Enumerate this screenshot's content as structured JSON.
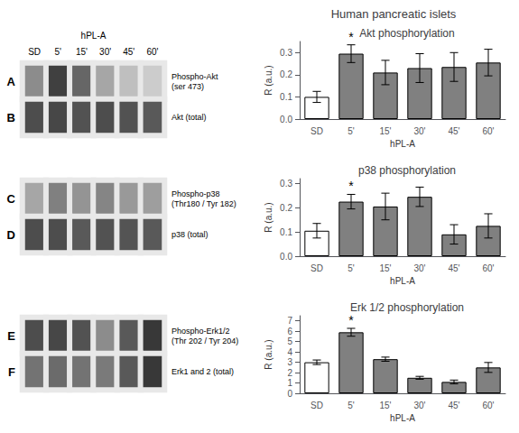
{
  "title": "Human pancreatic islets",
  "chart_data": [
    {
      "type": "bar",
      "title": "Akt phosphorylation",
      "categories": [
        "SD",
        "5'",
        "15'",
        "30'",
        "45'",
        "60'"
      ],
      "values": [
        0.1,
        0.295,
        0.21,
        0.23,
        0.235,
        0.255
      ],
      "errors": [
        0.025,
        0.04,
        0.055,
        0.065,
        0.065,
        0.06
      ],
      "colors": [
        "#ffffff",
        "#808080",
        "#808080",
        "#808080",
        "#808080",
        "#808080"
      ],
      "ylim": [
        0,
        0.35
      ],
      "yticks": [
        {
          "value": 0.0,
          "label": "0.0"
        },
        0.1,
        0.2,
        0.3
      ],
      "ylabel": "R (a.u.)",
      "xlabel": "hPL-A",
      "grid": false,
      "annotations": [
        {
          "text": "*",
          "x": "5'"
        }
      ]
    },
    {
      "type": "bar",
      "title": "p38 phosphorylation",
      "categories": [
        "SD",
        "5'",
        "15'",
        "30'",
        "45'",
        "60'"
      ],
      "values": [
        0.105,
        0.225,
        0.205,
        0.245,
        0.09,
        0.125
      ],
      "errors": [
        0.03,
        0.03,
        0.055,
        0.04,
        0.04,
        0.05
      ],
      "colors": [
        "#ffffff",
        "#808080",
        "#808080",
        "#808080",
        "#808080",
        "#808080"
      ],
      "ylim": [
        0,
        0.32
      ],
      "yticks": [
        {
          "value": 0.0,
          "label": "0.0"
        },
        0.1,
        0.2,
        0.3
      ],
      "ylabel": "R (a.u.)",
      "xlabel": "hPL-A",
      "grid": false,
      "annotations": [
        {
          "text": "*",
          "x": "5'"
        }
      ]
    },
    {
      "type": "bar",
      "title": "Erk 1/2 phosphorylation",
      "categories": [
        "SD",
        "5'",
        "15'",
        "30'",
        "45'",
        "60'"
      ],
      "values": [
        3.0,
        5.9,
        3.3,
        1.5,
        1.1,
        2.5
      ],
      "errors": [
        0.22,
        0.38,
        0.2,
        0.14,
        0.18,
        0.48
      ],
      "colors": [
        "#ffffff",
        "#808080",
        "#808080",
        "#808080",
        "#808080",
        "#808080"
      ],
      "ylim": [
        0,
        7.5
      ],
      "yticks": [
        0,
        1,
        2,
        3,
        4,
        5,
        6,
        7
      ],
      "ylabel": "R (a.u.)",
      "xlabel": "hPL-A",
      "grid": false,
      "annotations": [
        {
          "text": "*",
          "x": "5'"
        }
      ]
    },
    {
      "type": "heatmap",
      "categories": [
        "SD",
        "5'",
        "15'",
        "30'",
        "45'",
        "60'"
      ],
      "rows": [
        "Phospho-Akt\n(ser 473)",
        "Akt (total)"
      ],
      "cells": [
        [
          0.45,
          0.75,
          0.6,
          0.35,
          0.25,
          0.2
        ],
        [
          0.7,
          0.72,
          0.68,
          0.7,
          0.68,
          0.65
        ]
      ],
      "annotations": [
        "A",
        "B"
      ],
      "xlabel": "hPL-A"
    },
    {
      "type": "heatmap",
      "categories": [
        "SD",
        "5'",
        "15'",
        "30'",
        "45'",
        "60'"
      ],
      "rows": [
        "Phospho-p38\n(Thr180 / Tyr 182)",
        "p38 (total)"
      ],
      "cells": [
        [
          0.35,
          0.5,
          0.42,
          0.48,
          0.4,
          0.38
        ],
        [
          0.7,
          0.7,
          0.65,
          0.68,
          0.67,
          0.65
        ]
      ],
      "annotations": [
        "C",
        "D"
      ],
      "tick_labels": "y"
    },
    {
      "type": "heatmap",
      "categories": [
        "SD",
        "5'",
        "15'",
        "30'",
        "45'",
        "60'"
      ],
      "rows": [
        "Phospho-Erk1/2\n(Thr 202 / Tyr 204)",
        "Erk1 and 2 (total)"
      ],
      "cells": [
        [
          0.7,
          0.72,
          0.68,
          0.45,
          0.65,
          0.78
        ],
        [
          0.55,
          0.58,
          0.55,
          0.52,
          0.65,
          0.78
        ]
      ],
      "annotations": [
        "E",
        "F"
      ],
      "tick_labels": "y"
    }
  ]
}
